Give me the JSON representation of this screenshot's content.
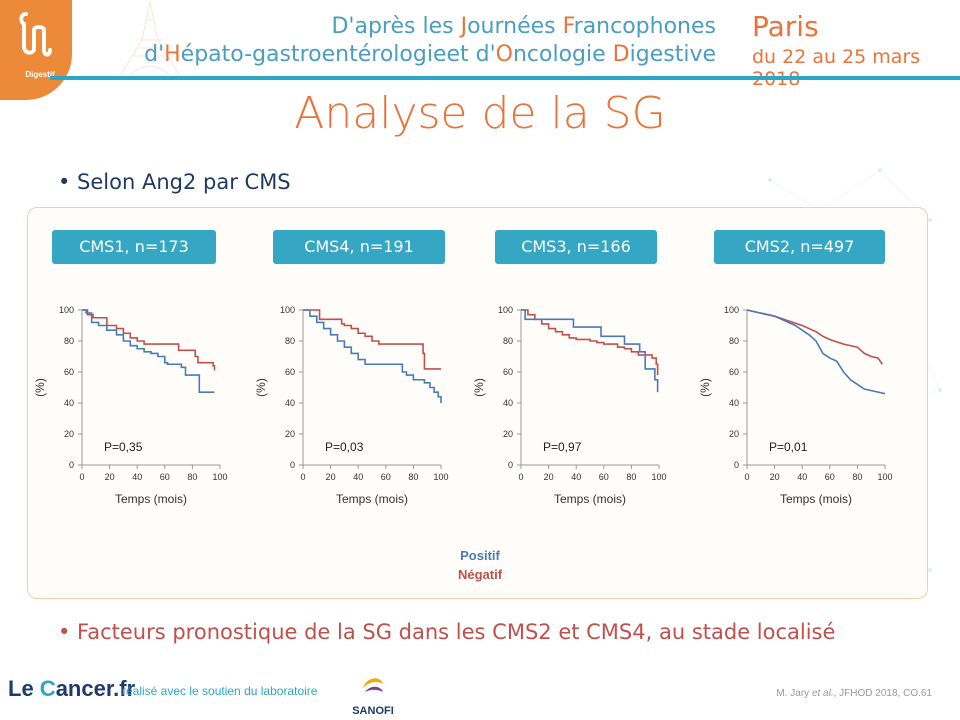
{
  "header": {
    "logo_label": "Digestif",
    "line1": [
      {
        "t": "D'après les ",
        "hl": false
      },
      {
        "t": "J",
        "hl": true
      },
      {
        "t": "ournées ",
        "hl": false
      },
      {
        "t": "F",
        "hl": true
      },
      {
        "t": "rancophones",
        "hl": false
      }
    ],
    "line2": [
      {
        "t": "d'",
        "hl": false
      },
      {
        "t": "H",
        "hl": true
      },
      {
        "t": "épato-gastroentérologieet d'",
        "hl": false
      },
      {
        "t": "O",
        "hl": true
      },
      {
        "t": "ncologie ",
        "hl": false
      },
      {
        "t": "D",
        "hl": true
      },
      {
        "t": "igestive",
        "hl": false
      }
    ],
    "city": "Paris",
    "dates": "du 22 au 25 mars 2018"
  },
  "title": "Analyse de la SG",
  "bullet1": "• Selon Ang2 par CMS",
  "bullet2": "• Facteurs pronostique de la SG dans les CMS2 et CMS4, au stade localisé",
  "legend": {
    "positif": "Positif",
    "negatif": "Négatif"
  },
  "footer": {
    "brand_le": "Le ",
    "brand_c": "C",
    "brand_rest": "ancer.fr",
    "support_text": "réalisé avec le soutien du laboratoire",
    "sanofi": "SANOFI",
    "citation_author": "M. Jary ",
    "citation_etal": "et al.",
    "citation_rest": ", JFHOD 2018, CO.61"
  },
  "colors": {
    "positif": "#4a7bb7",
    "negatif": "#c0504d",
    "accent": "#e8743b",
    "pill": "#35a6c3"
  },
  "chart_data": [
    {
      "type": "line",
      "title": "CMS1, n=173",
      "xlabel": "Temps (mois)",
      "ylabel": "(%)",
      "xlim": [
        0,
        100
      ],
      "ylim": [
        0,
        100
      ],
      "xticks": [
        0,
        20,
        40,
        60,
        80,
        100
      ],
      "yticks": [
        0,
        20,
        40,
        60,
        80,
        100
      ],
      "annotation": "P=0,35",
      "series": [
        {
          "name": "Positif",
          "step": true,
          "x": [
            0,
            3,
            7,
            12,
            18,
            25,
            30,
            35,
            40,
            45,
            50,
            55,
            60,
            62,
            72,
            75,
            84,
            85,
            96
          ],
          "y": [
            100,
            98,
            92,
            90,
            87,
            84,
            80,
            77,
            75,
            73,
            72,
            70,
            66,
            65,
            63,
            58,
            58,
            47,
            47
          ]
        },
        {
          "name": "Négatif",
          "step": true,
          "x": [
            0,
            4,
            8,
            18,
            25,
            30,
            35,
            40,
            45,
            65,
            70,
            80,
            82,
            84,
            95,
            96
          ],
          "y": [
            100,
            97,
            95,
            90,
            88,
            85,
            82,
            80,
            78,
            78,
            74,
            74,
            70,
            66,
            64,
            61
          ]
        }
      ]
    },
    {
      "type": "line",
      "title": "CMS4, n=191",
      "xlabel": "Temps (mois)",
      "ylabel": "(%)",
      "xlim": [
        0,
        100
      ],
      "ylim": [
        0,
        100
      ],
      "xticks": [
        0,
        20,
        40,
        60,
        80,
        100
      ],
      "yticks": [
        0,
        20,
        40,
        60,
        80,
        100
      ],
      "annotation": "P=0,03",
      "series": [
        {
          "name": "Positif",
          "step": true,
          "x": [
            0,
            5,
            10,
            15,
            20,
            25,
            30,
            35,
            40,
            45,
            50,
            55,
            60,
            65,
            72,
            75,
            80,
            88,
            92,
            95,
            98,
            100
          ],
          "y": [
            100,
            96,
            92,
            88,
            84,
            80,
            76,
            72,
            68,
            65,
            65,
            65,
            65,
            65,
            60,
            58,
            55,
            53,
            50,
            47,
            44,
            40
          ]
        },
        {
          "name": "Négatif",
          "step": true,
          "x": [
            0,
            12,
            28,
            30,
            35,
            40,
            45,
            50,
            55,
            85,
            87,
            88,
            100
          ],
          "y": [
            100,
            94,
            91,
            90,
            88,
            85,
            83,
            80,
            78,
            78,
            72,
            62,
            62
          ]
        }
      ]
    },
    {
      "type": "line",
      "title": "CMS3, n=166",
      "xlabel": "Temps (mois)",
      "ylabel": "(%)",
      "xlim": [
        0,
        100
      ],
      "ylim": [
        0,
        100
      ],
      "xticks": [
        0,
        20,
        40,
        60,
        80,
        100
      ],
      "yticks": [
        0,
        20,
        40,
        60,
        80,
        100
      ],
      "annotation": "P=0,97",
      "series": [
        {
          "name": "Positif",
          "step": true,
          "x": [
            0,
            3,
            32,
            38,
            58,
            75,
            86,
            90,
            97,
            99
          ],
          "y": [
            100,
            94,
            94,
            89,
            83,
            78,
            73,
            62,
            55,
            47
          ]
        },
        {
          "name": "Négatif",
          "step": true,
          "x": [
            0,
            5,
            10,
            15,
            20,
            25,
            30,
            35,
            40,
            50,
            55,
            60,
            70,
            75,
            80,
            85,
            95,
            98,
            99
          ],
          "y": [
            100,
            97,
            94,
            91,
            88,
            86,
            84,
            82,
            81,
            80,
            79,
            78,
            76,
            75,
            73,
            71,
            69,
            65,
            58
          ]
        }
      ]
    },
    {
      "type": "line",
      "title": "CMS2, n=497",
      "xlabel": "Temps (mois)",
      "ylabel": "(%)",
      "xlim": [
        0,
        100
      ],
      "ylim": [
        0,
        100
      ],
      "xticks": [
        0,
        20,
        40,
        60,
        80,
        100
      ],
      "yticks": [
        0,
        20,
        40,
        60,
        80,
        100
      ],
      "annotation": "P=0,01",
      "series": [
        {
          "name": "Positif",
          "step": false,
          "x": [
            0,
            10,
            20,
            30,
            35,
            40,
            45,
            50,
            55,
            60,
            65,
            70,
            75,
            80,
            85,
            90,
            95,
            100
          ],
          "y": [
            100,
            98,
            96,
            92,
            90,
            87,
            84,
            80,
            72,
            69,
            67,
            60,
            55,
            52,
            49,
            48,
            47,
            46
          ]
        },
        {
          "name": "Négatif",
          "step": false,
          "x": [
            0,
            10,
            20,
            30,
            40,
            50,
            55,
            60,
            70,
            80,
            85,
            90,
            95,
            98
          ],
          "y": [
            100,
            98,
            96,
            93,
            90,
            86,
            83,
            81,
            78,
            76,
            72,
            70,
            69,
            65
          ]
        }
      ]
    }
  ]
}
